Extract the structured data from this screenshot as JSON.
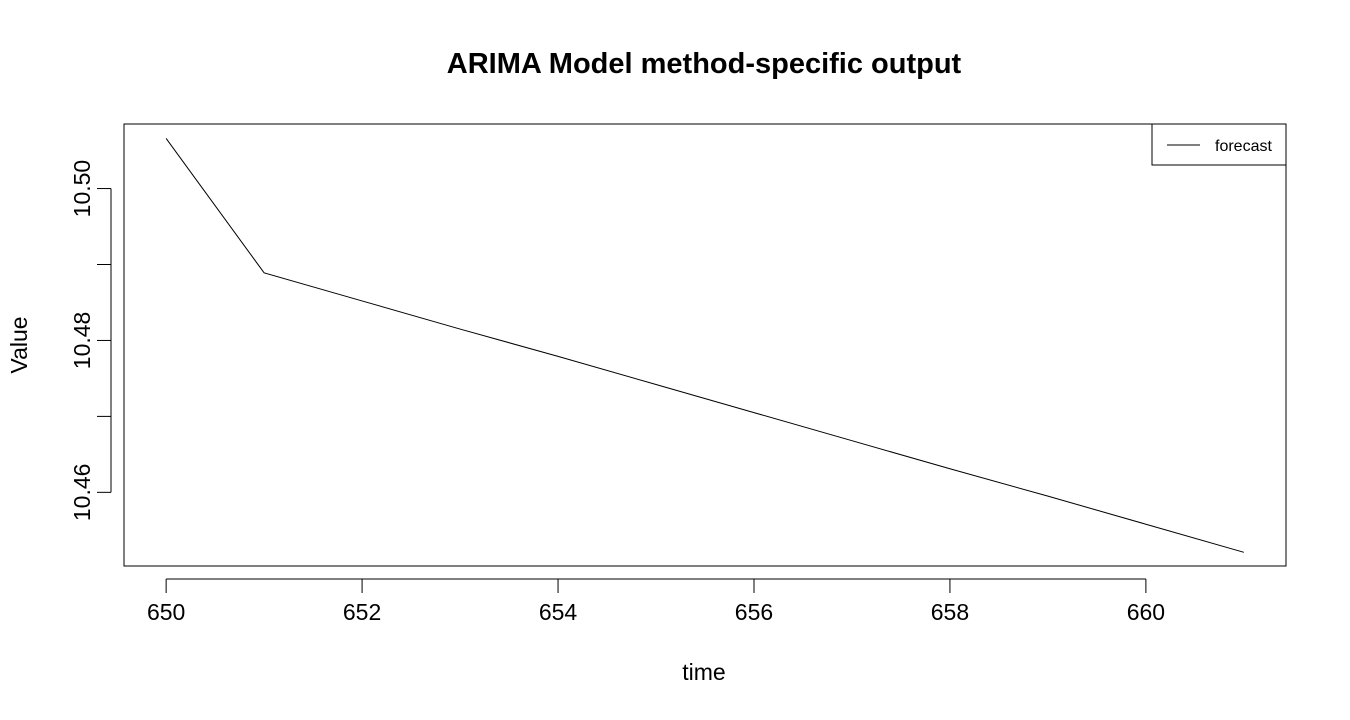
{
  "chart_data": {
    "type": "line",
    "title": "ARIMA Model method-specific output",
    "xlabel": "time",
    "ylabel": "Value",
    "xlim": [
      649.57,
      661.43
    ],
    "ylim": [
      10.4503,
      10.5085
    ],
    "x_ticks": [
      650,
      652,
      654,
      656,
      658,
      660
    ],
    "x_tick_labels": [
      "650",
      "652",
      "654",
      "656",
      "658",
      "660"
    ],
    "y_ticks": [
      10.46,
      10.47,
      10.48,
      10.49,
      10.5
    ],
    "y_tick_labels": [
      "10.46",
      "",
      "10.48",
      "",
      "10.50"
    ],
    "grid": false,
    "legend": {
      "position": "top-right",
      "entries": [
        "forecast"
      ]
    },
    "series": [
      {
        "name": "forecast",
        "color": "#000000",
        "x": [
          650,
          651,
          652,
          653,
          654,
          655,
          656,
          657,
          658,
          659,
          660,
          661
        ],
        "y": [
          10.5066,
          10.4889,
          10.4852,
          10.4815,
          10.4779,
          10.4742,
          10.4705,
          10.4668,
          10.4631,
          10.4595,
          10.4558,
          10.4521
        ]
      }
    ]
  }
}
